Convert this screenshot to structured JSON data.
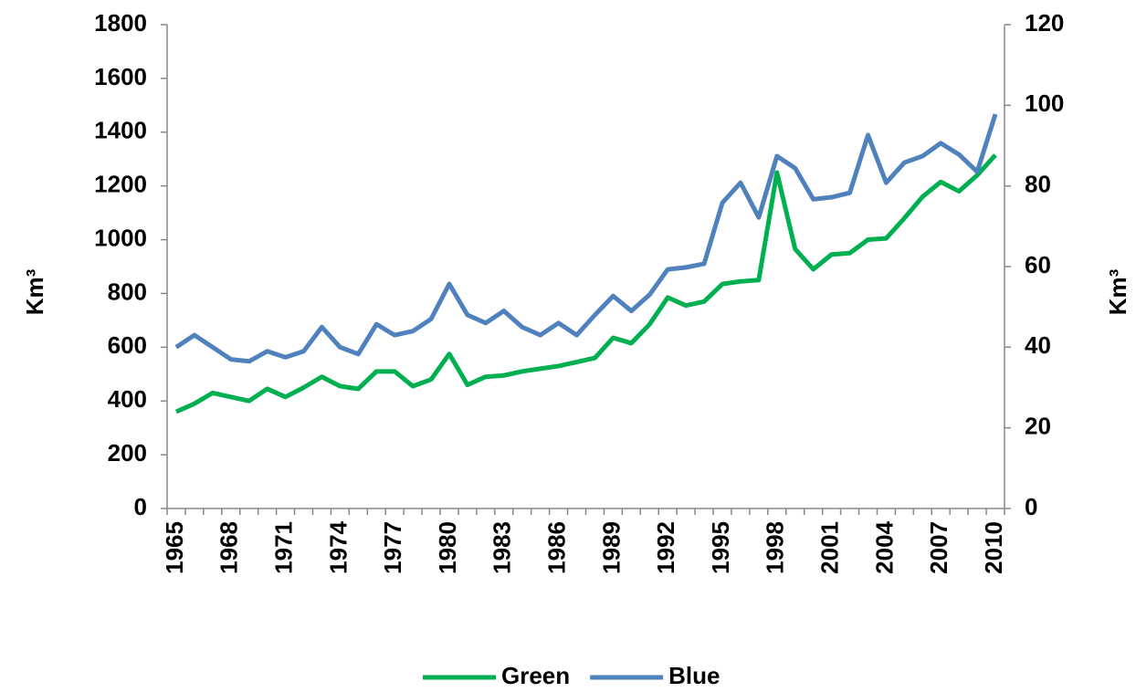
{
  "chart_data": {
    "type": "line",
    "categories": [
      "1965",
      null,
      null,
      "1968",
      null,
      null,
      "1971",
      null,
      null,
      "1974",
      null,
      null,
      "1977",
      null,
      null,
      "1980",
      null,
      null,
      "1983",
      null,
      null,
      "1986",
      null,
      null,
      "1989",
      null,
      null,
      "1992",
      null,
      null,
      "1995",
      null,
      null,
      "1998",
      null,
      null,
      "2001",
      null,
      null,
      "2004",
      null,
      null,
      "2007",
      null,
      null,
      "2010"
    ],
    "series": [
      {
        "name": "Green",
        "color": "#00b050",
        "values": [
          360,
          390,
          430,
          415,
          400,
          445,
          415,
          450,
          490,
          455,
          445,
          510,
          510,
          455,
          480,
          575,
          460,
          490,
          495,
          510,
          520,
          530,
          545,
          560,
          635,
          615,
          685,
          785,
          755,
          770,
          835,
          845,
          850,
          1250,
          965,
          890,
          945,
          950,
          1000,
          1005,
          1080,
          1160,
          1215,
          1180,
          1240,
          1315
        ]
      },
      {
        "name": "Blue",
        "color": "#4f81bd",
        "axis": "y2",
        "values": [
          40,
          43,
          40,
          37,
          36.5,
          39,
          37.5,
          39,
          45,
          40,
          38.3,
          45.7,
          43,
          44,
          47,
          55.7,
          48,
          46,
          49,
          45,
          43,
          46,
          43,
          48,
          52.7,
          49,
          53,
          59.3,
          59.8,
          60.7,
          75.8,
          80.8,
          72.2,
          87.4,
          84.4,
          76.7,
          77.2,
          78.3,
          92.6,
          80.8,
          85.8,
          87.4,
          90.6,
          87.8,
          83.5,
          97.8
        ]
      }
    ],
    "y_label": "Km³",
    "y2_label": "Km³",
    "ylim": [
      0,
      1800
    ],
    "yticks": [
      0,
      200,
      400,
      600,
      800,
      1000,
      1200,
      1400,
      1600,
      1800
    ],
    "y2lim": [
      0,
      120
    ],
    "y2ticks": [
      0,
      20,
      40,
      60,
      80,
      100,
      120
    ],
    "grid": false,
    "legend": "bottom"
  }
}
